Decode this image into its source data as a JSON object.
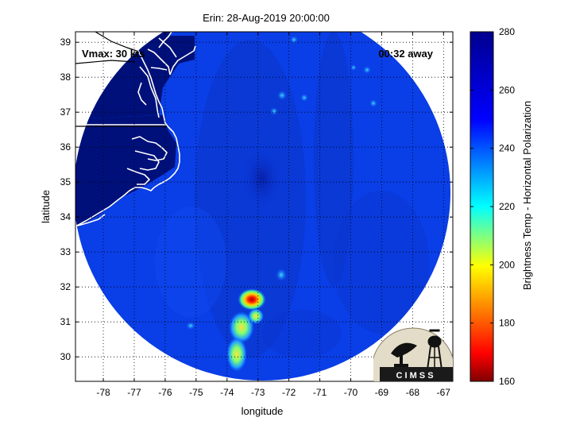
{
  "title": "Erin: 28-Aug-2019 20:00:00",
  "vmax_label": "Vmax: 30 kts",
  "time_label": "00:32 away",
  "x_axis": {
    "label": "longitude",
    "range": [
      -78.9,
      -66.7
    ],
    "ticks": [
      -78,
      -77,
      -76,
      -75,
      -74,
      -73,
      -72,
      -71,
      -70,
      -69,
      -68,
      -67
    ]
  },
  "y_axis": {
    "label": "latitude",
    "range": [
      29.3,
      39.3
    ],
    "ticks": [
      30,
      31,
      32,
      33,
      34,
      35,
      36,
      37,
      38,
      39
    ]
  },
  "grid": "dotted",
  "colorbar": {
    "label": "Brightness Temp - Horizontal Polarization",
    "range": [
      160,
      280
    ],
    "ticks": [
      160,
      180,
      200,
      220,
      240,
      260,
      280
    ],
    "colormap": [
      "#7f0000",
      "#ff0000",
      "#ffff00",
      "#00ffff",
      "#0000ff",
      "#00008f"
    ]
  },
  "logo": {
    "text": "C I M S S"
  },
  "colors": {
    "land": "#00107a",
    "ocean_swath": "#0a3ee6",
    "coastline": "#ffffff"
  }
}
